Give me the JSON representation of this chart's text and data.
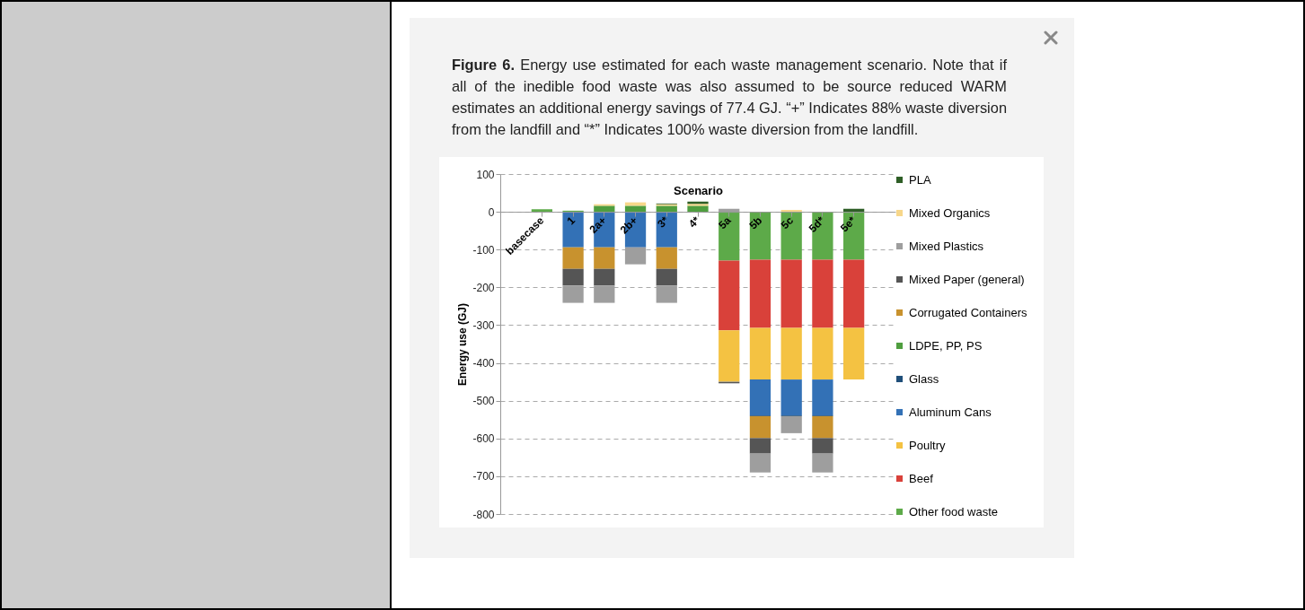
{
  "chart_data": {
    "type": "bar",
    "title": "Figure 6.",
    "subtitle": "Energy use estimated for each waste management scenario. Note that if all of the inedible food waste was also assumed to be source reduced WARM estimates an additional energy savings of 77.4 GJ. “+” Indicates 88% waste diversion from the landfill and “*” Indicates 100% waste diversion from the landfill.",
    "xlabel": "Scenario",
    "ylabel": "Energy use (GJ)",
    "categories": [
      "basecase",
      "1",
      "2a+",
      "2b+",
      "3*",
      "4*",
      "5a",
      "5b",
      "5c",
      "5d*",
      "5e*"
    ],
    "stacked": true,
    "ylim": [
      -800,
      100
    ],
    "yticks": [
      -800,
      -700,
      -600,
      -500,
      -400,
      -300,
      -200,
      -100,
      0,
      100
    ],
    "grid": "y",
    "legend": "right",
    "series": [
      {
        "name": "Other food waste",
        "color": "#5daa49",
        "values": [
          7,
          3,
          null,
          null,
          null,
          null,
          -129,
          -127,
          -127,
          -127,
          -127
        ]
      },
      {
        "name": "Beef",
        "color": "#d9413a",
        "values": [
          null,
          null,
          null,
          null,
          null,
          null,
          -185,
          -180,
          -180,
          -180,
          -180
        ]
      },
      {
        "name": "Poultry",
        "color": "#f4c242",
        "values": [
          null,
          null,
          null,
          null,
          null,
          null,
          -136,
          -137,
          -137,
          -137,
          -137
        ]
      },
      {
        "name": "Aluminum Cans",
        "color": "#3371b6",
        "values": [
          null,
          -94,
          -94,
          -94,
          -94,
          null,
          null,
          -95,
          -95,
          -95,
          null
        ]
      },
      {
        "name": "Glass",
        "color": "#1f4e79",
        "values": [
          null,
          null,
          null,
          null,
          null,
          null,
          null,
          -2,
          -2,
          -2,
          null
        ]
      },
      {
        "name": "LDPE, PP, PS",
        "color": "#4f9e3f",
        "values": [
          null,
          null,
          16,
          16,
          16,
          16,
          null,
          null,
          null,
          null,
          null
        ]
      },
      {
        "name": "Corrugated Containers",
        "color": "#c8922e",
        "values": [
          null,
          -57,
          -57,
          null,
          -57,
          null,
          null,
          -58,
          null,
          -58,
          null
        ]
      },
      {
        "name": "Mixed Paper (general)",
        "color": "#555555",
        "values": [
          null,
          -44,
          -44,
          null,
          -44,
          null,
          -4,
          -41,
          null,
          -41,
          null
        ]
      },
      {
        "name": "Mixed Plastics",
        "color": "#9e9e9e",
        "values": [
          null,
          -46,
          -46,
          -45,
          -46,
          null,
          8,
          -50,
          -45,
          -50,
          null
        ]
      },
      {
        "name": "Mixed Organics",
        "color": "#f7d78a",
        "values": [
          null,
          null,
          4,
          9,
          4,
          5,
          null,
          null,
          5,
          null,
          null
        ]
      },
      {
        "name": "PLA",
        "color": "#2e5e26",
        "values": [
          null,
          null,
          null,
          null,
          2,
          6,
          null,
          null,
          null,
          null,
          8
        ]
      }
    ]
  }
}
